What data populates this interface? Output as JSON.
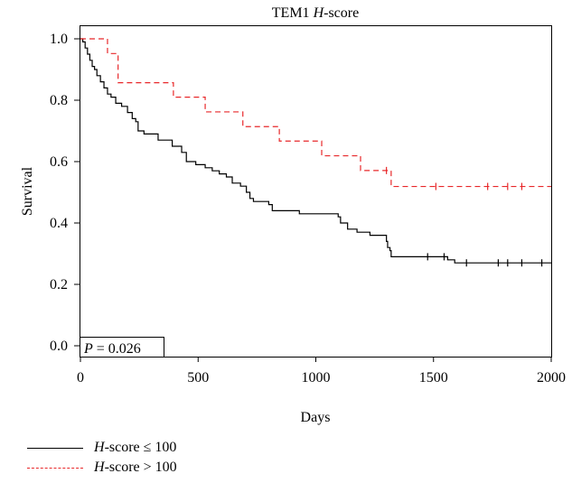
{
  "chart_data": {
    "type": "line",
    "title": {
      "prefix": "TEM1",
      "italic": "H",
      "suffix": "-score"
    },
    "xlabel": "Days",
    "ylabel": "Survival",
    "xlim": [
      0,
      2000
    ],
    "ylim": [
      0,
      1.0
    ],
    "x_ticks": [
      0,
      500,
      1000,
      1500,
      2000
    ],
    "x_tick_labels": [
      "0",
      "500",
      "1000",
      "1500",
      "2000"
    ],
    "y_ticks": [
      0.0,
      0.2,
      0.4,
      0.6,
      0.8,
      1.0
    ],
    "y_tick_labels": [
      "0.0",
      "0.2",
      "0.4",
      "0.6",
      "0.8",
      "1.0"
    ],
    "annotation": {
      "italic": "P",
      "text": " = 0.026"
    },
    "grid": false,
    "legend_position": "bottom-left",
    "series": [
      {
        "name": "H-score ≤ 100",
        "legend_italic": "H",
        "legend_rest": "-score ≤ 100",
        "color": "#000000",
        "style": "solid",
        "steps": [
          [
            0,
            1.0
          ],
          [
            10,
            0.99
          ],
          [
            20,
            0.97
          ],
          [
            30,
            0.95
          ],
          [
            40,
            0.93
          ],
          [
            50,
            0.91
          ],
          [
            60,
            0.9
          ],
          [
            70,
            0.88
          ],
          [
            85,
            0.86
          ],
          [
            100,
            0.84
          ],
          [
            115,
            0.82
          ],
          [
            130,
            0.81
          ],
          [
            150,
            0.79
          ],
          [
            175,
            0.78
          ],
          [
            200,
            0.76
          ],
          [
            220,
            0.74
          ],
          [
            235,
            0.73
          ],
          [
            245,
            0.7
          ],
          [
            270,
            0.69
          ],
          [
            330,
            0.67
          ],
          [
            390,
            0.65
          ],
          [
            430,
            0.63
          ],
          [
            450,
            0.6
          ],
          [
            490,
            0.59
          ],
          [
            530,
            0.58
          ],
          [
            560,
            0.57
          ],
          [
            590,
            0.56
          ],
          [
            620,
            0.55
          ],
          [
            645,
            0.53
          ],
          [
            680,
            0.52
          ],
          [
            705,
            0.5
          ],
          [
            720,
            0.48
          ],
          [
            735,
            0.47
          ],
          [
            800,
            0.46
          ],
          [
            815,
            0.44
          ],
          [
            930,
            0.43
          ],
          [
            1095,
            0.42
          ],
          [
            1105,
            0.4
          ],
          [
            1135,
            0.38
          ],
          [
            1175,
            0.37
          ],
          [
            1230,
            0.36
          ],
          [
            1300,
            0.34
          ],
          [
            1305,
            0.32
          ],
          [
            1315,
            0.31
          ],
          [
            1320,
            0.29
          ],
          [
            1560,
            0.28
          ],
          [
            1590,
            0.27
          ]
        ],
        "censored": [
          1475,
          1545,
          1640,
          1775,
          1815,
          1875,
          1960
        ],
        "end_x": 2000
      },
      {
        "name": "H-score > 100",
        "legend_italic": "H",
        "legend_rest": "-score > 100",
        "color": "#e8282a",
        "style": "dashed",
        "steps": [
          [
            0,
            1.0
          ],
          [
            115,
            0.952
          ],
          [
            160,
            0.857
          ],
          [
            395,
            0.81
          ],
          [
            530,
            0.762
          ],
          [
            690,
            0.714
          ],
          [
            845,
            0.667
          ],
          [
            1025,
            0.619
          ],
          [
            1190,
            0.571
          ],
          [
            1320,
            0.519
          ]
        ],
        "censored": [
          1300,
          1510,
          1730,
          1815,
          1875
        ],
        "end_x": 2000
      }
    ]
  }
}
